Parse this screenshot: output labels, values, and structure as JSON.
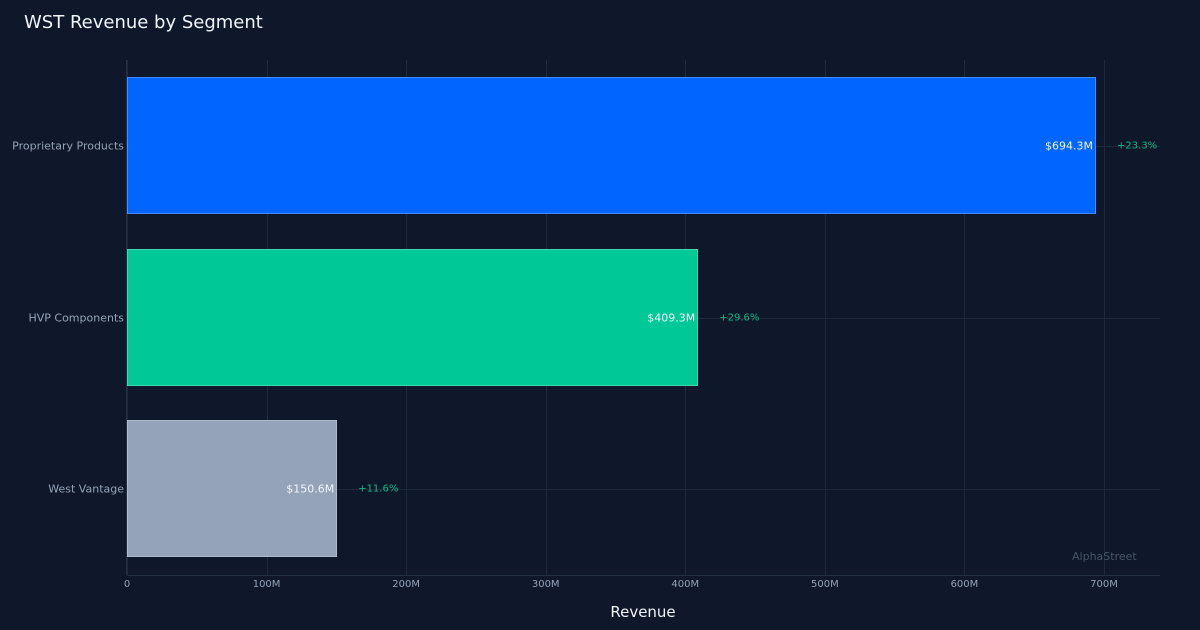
{
  "title": "WST Revenue by Segment",
  "watermark": "AlphaStreet",
  "chart_data": {
    "type": "bar",
    "orientation": "horizontal",
    "title": "WST Revenue by Segment",
    "xlabel": "Revenue",
    "ylabel": "",
    "xlim": [
      0,
      740
    ],
    "unit": "M",
    "grid": true,
    "categories": [
      "Proprietary Products",
      "HVP Components",
      "West Vantage"
    ],
    "values": [
      694.3,
      409.3,
      150.6
    ],
    "value_labels": [
      "$694.3M",
      "$409.3M",
      "$150.6M"
    ],
    "change_labels": [
      "+23.3%",
      "+29.6%",
      "+11.6%"
    ],
    "colors": [
      "#0066ff",
      "#00c896",
      "#94a3b8"
    ],
    "x_ticks": [
      0,
      100,
      200,
      300,
      400,
      500,
      600,
      700
    ],
    "x_tick_labels": [
      "0",
      "100M",
      "200M",
      "300M",
      "400M",
      "500M",
      "600M",
      "700M"
    ]
  }
}
